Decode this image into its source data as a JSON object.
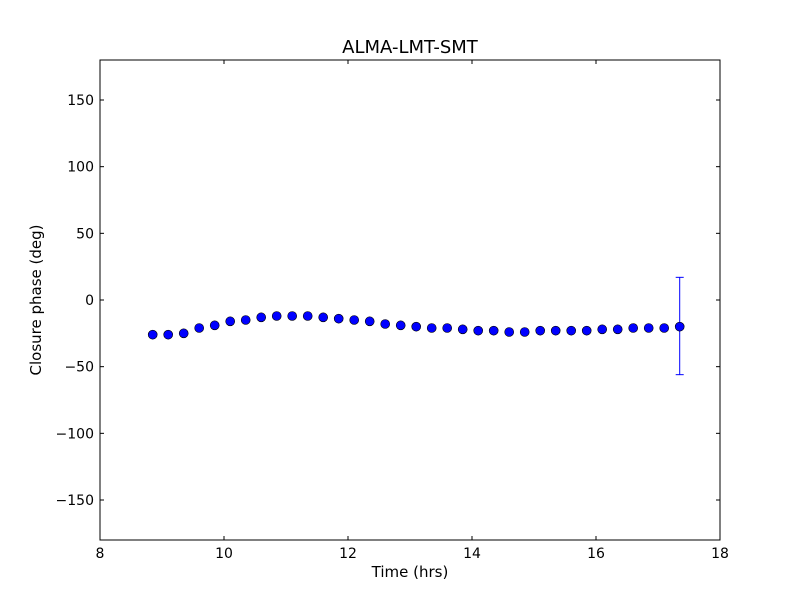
{
  "chart_data": {
    "type": "scatter",
    "title": "ALMA-LMT-SMT",
    "xlabel": "Time (hrs)",
    "ylabel": "Closure phase (deg)",
    "xlim": [
      8,
      18
    ],
    "ylim": [
      -180,
      180
    ],
    "xticks": [
      8,
      10,
      12,
      14,
      16,
      18
    ],
    "xtick_labels": [
      "8",
      "10",
      "12",
      "14",
      "16",
      "18"
    ],
    "yticks": [
      150,
      100,
      50,
      0,
      -50,
      -100,
      -150
    ],
    "ytick_labels": [
      "150",
      "100",
      "50",
      "0",
      "−50",
      "−100",
      "−150"
    ],
    "grid": false,
    "marker_color": "#0000ff",
    "series": [
      {
        "x": [
          8.85,
          9.1,
          9.35,
          9.6,
          9.85,
          10.1,
          10.35,
          10.6,
          10.85,
          11.1,
          11.35,
          11.6,
          11.85,
          12.1,
          12.35,
          12.6,
          12.85,
          13.1,
          13.35,
          13.6,
          13.85,
          14.1,
          14.35,
          14.6,
          14.85,
          15.1,
          15.35,
          15.6,
          15.85,
          16.1,
          16.35,
          16.6,
          16.85,
          17.1,
          17.35
        ],
        "y": [
          -26,
          -26,
          -25,
          -21,
          -19,
          -16,
          -15,
          -13,
          -12,
          -12,
          -12,
          -13,
          -14,
          -15,
          -16,
          -18,
          -19,
          -20,
          -21,
          -21,
          -22,
          -23,
          -23,
          -24,
          -24,
          -23,
          -23,
          -23,
          -23,
          -22,
          -22,
          -21,
          -21,
          -21,
          -20
        ],
        "error_bars": [
          {
            "x": 17.35,
            "y": -20,
            "lower": -56,
            "upper": 17
          }
        ]
      }
    ]
  }
}
